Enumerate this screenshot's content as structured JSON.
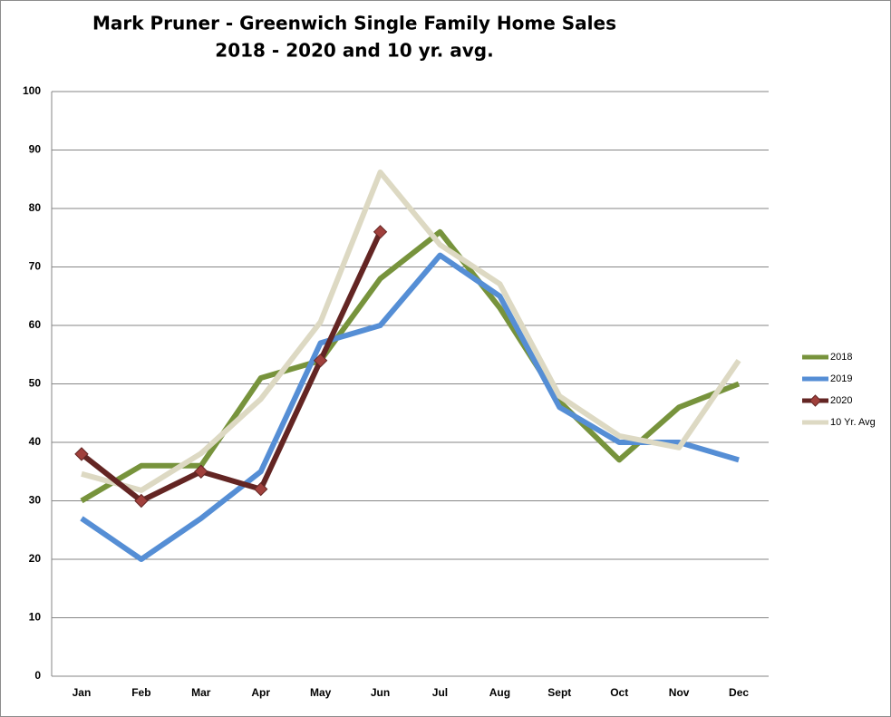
{
  "chart_data": {
    "type": "line",
    "title": "Mark Pruner - Greenwich Single Family Home Sales",
    "subtitle": "2018 - 2020 and 10 yr. avg.",
    "categories": [
      "Jan",
      "Feb",
      "Mar",
      "Apr",
      "May",
      "Jun",
      "Jul",
      "Aug",
      "Sept",
      "Oct",
      "Nov",
      "Dec"
    ],
    "series": [
      {
        "name": "2018",
        "color": "#77933c",
        "values": [
          30,
          36,
          36,
          51,
          54,
          68,
          76,
          63,
          47,
          37,
          46,
          50
        ]
      },
      {
        "name": "2019",
        "color": "#558ed5",
        "values": [
          27,
          20,
          27,
          35,
          57,
          60,
          72,
          65,
          46,
          40,
          40,
          37
        ]
      },
      {
        "name": "2020",
        "color": "#632523",
        "marker": "diamond",
        "marker_color": "#a0403c",
        "values": [
          38,
          30,
          35,
          32,
          54,
          76,
          null,
          null,
          null,
          null,
          null,
          null
        ]
      },
      {
        "name": "10 Yr. Avg",
        "color": "#ddd9c3",
        "values": [
          34.6,
          31.8,
          38.1,
          47.4,
          60.6,
          86.2,
          73.8,
          67.1,
          47.9,
          41.1,
          39.1,
          54
        ]
      }
    ],
    "ylim": [
      0,
      100
    ],
    "yticks": [
      0,
      10,
      20,
      30,
      40,
      50,
      60,
      70,
      80,
      90,
      100
    ],
    "grid": true,
    "legend": "right"
  }
}
